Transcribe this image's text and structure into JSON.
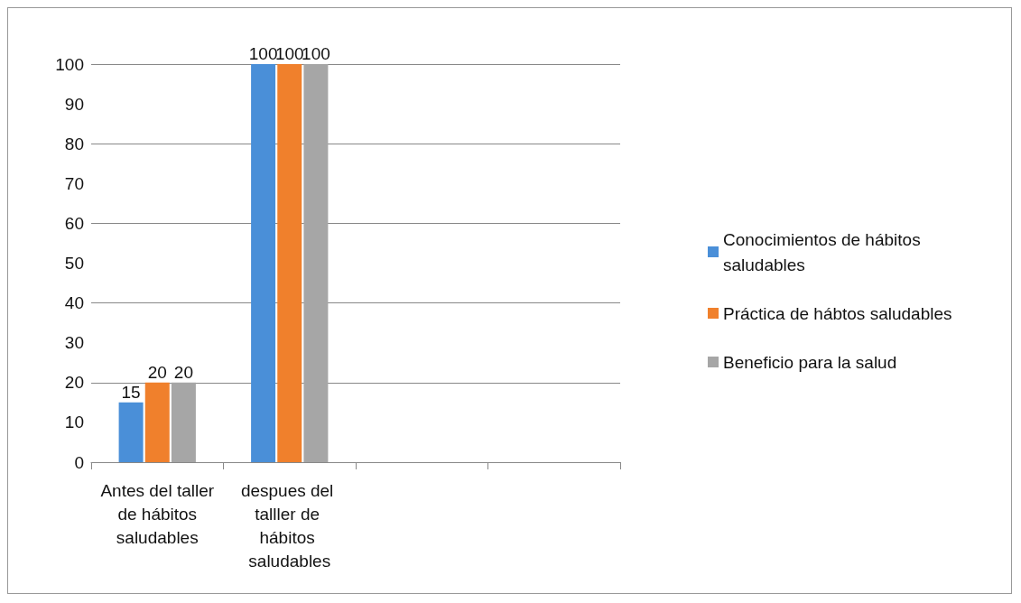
{
  "chart_data": {
    "type": "bar",
    "categories": [
      "Antes del taller de hábitos saludables",
      "despues del talller de hábitos saludables",
      null,
      null
    ],
    "series": [
      {
        "name": "Conocimientos de hábitos saludables",
        "color": "#4a8fd8",
        "values": [
          15,
          100,
          null,
          null
        ]
      },
      {
        "name": "Práctica de hábtos saludables",
        "color": "#f0802c",
        "values": [
          20,
          100,
          null,
          null
        ]
      },
      {
        "name": "Beneficio para la salud",
        "color": "#a6a6a6",
        "values": [
          20,
          100,
          null,
          null
        ]
      }
    ],
    "ylim": [
      0,
      100
    ],
    "yticks": [
      0,
      10,
      20,
      30,
      40,
      50,
      60,
      70,
      80,
      90,
      100
    ],
    "grid": "y",
    "legend": "right",
    "data_labels": true
  }
}
